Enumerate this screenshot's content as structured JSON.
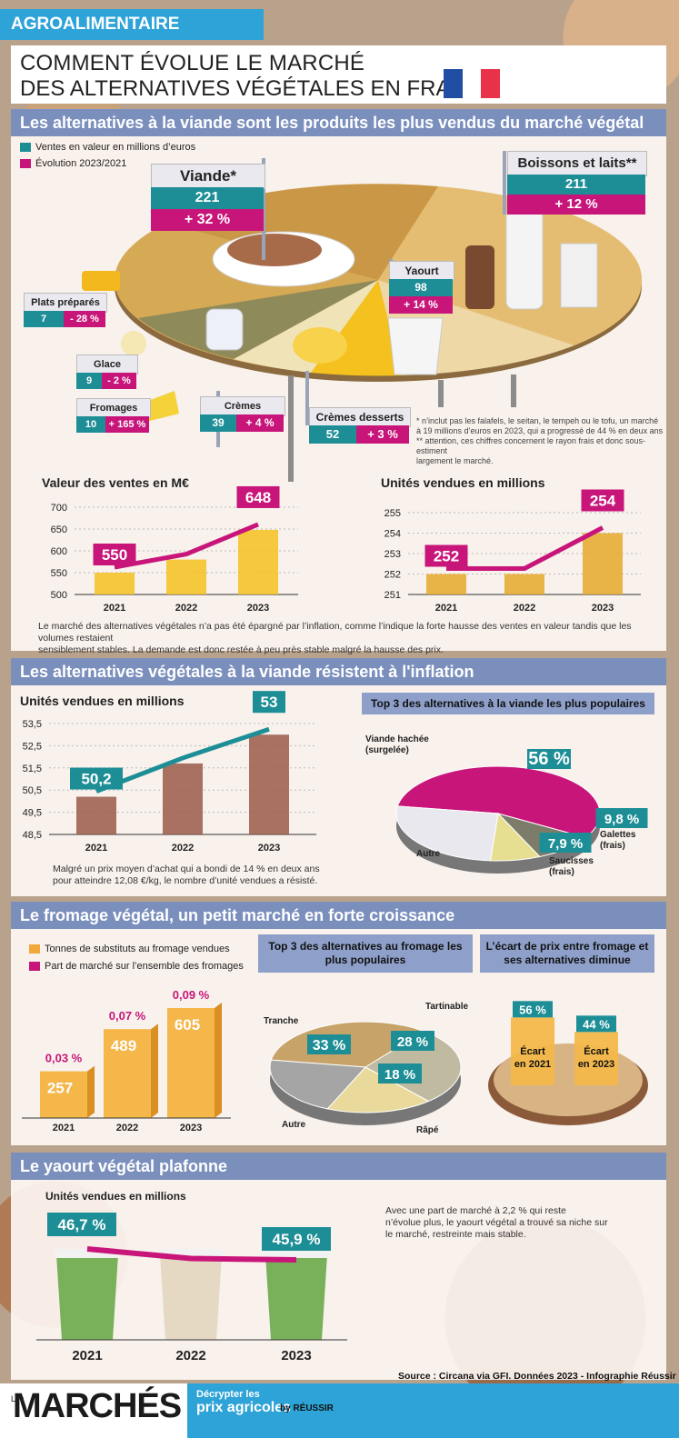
{
  "header": {
    "tag": "AGROALIMENTAIRE",
    "title_line1": "COMMENT ÉVOLUE LE MARCHÉ",
    "title_line2": "DES ALTERNATIVES VÉGÉTALES EN FRANCE"
  },
  "colors": {
    "teal": "#1e8e96",
    "magenta": "#c8157a",
    "blue_head": "#7b8fbd",
    "orange": "#f2a93b",
    "gold": "#f5c11e"
  },
  "section1": {
    "title": "Les alternatives à la viande sont les produits les plus vendus du marché végétal",
    "legend_value": "Ventes en valeur en millions d’euros",
    "legend_evolution": "Évolution 2023/2021",
    "categories": [
      {
        "name": "Viande*",
        "value": "221",
        "evolution": "+ 32 %"
      },
      {
        "name": "Boissons et laits**",
        "value": "211",
        "evolution": "+ 12 %"
      },
      {
        "name": "Yaourt",
        "value": "98",
        "evolution": "+ 14 %"
      },
      {
        "name": "Plats préparés",
        "value": "7",
        "evolution": "- 28 %"
      },
      {
        "name": "Glace",
        "value": "9",
        "evolution": "- 2 %"
      },
      {
        "name": "Fromages",
        "value": "10",
        "evolution": "+ 165 %"
      },
      {
        "name": "Crèmes",
        "value": "39",
        "evolution": "+ 4 %"
      },
      {
        "name": "Crèmes desserts",
        "value": "52",
        "evolution": "+ 3 %"
      }
    ],
    "footnote1": "* n’inclut pas les falafels, le seitan, le tempeh ou le tofu, un marché",
    "footnote2": "à 19 millions d’euros en 2023, qui a progressé de 44 % en deux ans",
    "footnote3": "** attention, ces chiffres concernent le rayon frais et donc sous-estiment",
    "footnote4": "largement le marché.",
    "note1": "Le marché des alternatives végétales n’a pas été épargné par l’inflation, comme l’indique la forte hausse des ventes en valeur tandis que les volumes restaient",
    "note2": "sensiblement stables. La demande est donc restée à peu près stable malgré la hausse des prix."
  },
  "section2": {
    "title": "Les alternatives végétales à la viande résistent à l'inflation",
    "note1": "Malgré un prix moyen d’achat qui a bondi de 14 % en deux ans",
    "note2": "pour atteindre 12,08 €/kg, le nombre d’unité vendues a résisté."
  },
  "section3": {
    "title": "Le fromage végétal, un petit marché en forte croissance",
    "legend_tonnes": "Tonnes de substituts au fromage vendues",
    "legend_share": "Part de marché sur l’ensemble des fromages"
  },
  "section4": {
    "title": "Le yaourt végétal plafonne",
    "note1": "Avec une part de marché à 2,2 % qui reste",
    "note2": "n’évolue plus, le yaourt végétal a trouvé sa niche sur",
    "note3": "le marché, restreinte mais stable."
  },
  "footer": {
    "source": "Source : Circana via GFI. Données 2023 - Infographie Réussir",
    "brand_small": "Les",
    "brand": "MARCHÉS",
    "tagline1": "Décrypter les",
    "tagline2": "prix agricoles",
    "by": "by RÉUSSIR"
  },
  "chart_data": [
    {
      "type": "line",
      "title": "Valeur des ventes en M€",
      "x": [
        "2021",
        "2022",
        "2023"
      ],
      "values": [
        550,
        580,
        648
      ],
      "labels": [
        "550",
        "",
        "648"
      ],
      "yticks": [
        "700",
        "650",
        "600",
        "550",
        "500"
      ],
      "ylim": [
        500,
        700
      ]
    },
    {
      "type": "line",
      "title": "Unités vendues en millions",
      "x": [
        "2021",
        "2022",
        "2023"
      ],
      "values": [
        252,
        252,
        254
      ],
      "labels": [
        "252",
        "",
        "254"
      ],
      "yticks": [
        "255",
        "254",
        "253",
        "252",
        "251"
      ],
      "ylim": [
        251,
        255
      ]
    },
    {
      "type": "line",
      "title": "Unités vendues en millions",
      "x": [
        "2021",
        "2022",
        "2023"
      ],
      "values": [
        50.2,
        51.7,
        53
      ],
      "labels": [
        "50,2",
        "",
        "53"
      ],
      "yticks": [
        "53,5",
        "52,5",
        "51,5",
        "50,5",
        "49,5",
        "48,5"
      ],
      "ylim": [
        48.5,
        53.5
      ]
    },
    {
      "type": "pie",
      "title": "Top 3 des alternatives à la viande les plus populaires",
      "slices": [
        {
          "label": "Viande hachée (surgelée)",
          "value": 56,
          "text": "56 %"
        },
        {
          "label": "Galettes (frais)",
          "value": 9.8,
          "text": "9,8 %"
        },
        {
          "label": "Saucisses (frais)",
          "value": 7.9,
          "text": "7,9 %"
        },
        {
          "label": "Autre",
          "value": 26.3,
          "text": ""
        }
      ]
    },
    {
      "type": "bar",
      "title": "Tonnes de substituts au fromage vendues",
      "x": [
        "2021",
        "2022",
        "2023"
      ],
      "values": [
        257,
        489,
        605
      ],
      "labels": [
        "257",
        "489",
        "605"
      ],
      "share": [
        "0,03 %",
        "0,07 %",
        "0,09 %"
      ]
    },
    {
      "type": "pie",
      "title": "Top 3 des alternatives au fromage les plus populaires",
      "slices": [
        {
          "label": "Tranche",
          "value": 33,
          "text": "33 %"
        },
        {
          "label": "Tartinable",
          "value": 28,
          "text": "28 %"
        },
        {
          "label": "Râpé",
          "value": 18,
          "text": "18 %"
        },
        {
          "label": "Autre",
          "value": 21,
          "text": ""
        }
      ]
    },
    {
      "type": "bar",
      "title": "L’écart de prix entre fromage et ses alternatives diminue",
      "x": [
        "Écart en 2021",
        "Écart en 2023"
      ],
      "values": [
        56,
        44
      ],
      "labels": [
        "56 %",
        "44 %"
      ]
    },
    {
      "type": "line",
      "title": "Unités vendues en millions",
      "x": [
        "2021",
        "2022",
        "2023"
      ],
      "values": [
        46.7,
        46.0,
        45.9
      ],
      "labels": [
        "46,7 %",
        "",
        "45,9 %"
      ]
    }
  ]
}
